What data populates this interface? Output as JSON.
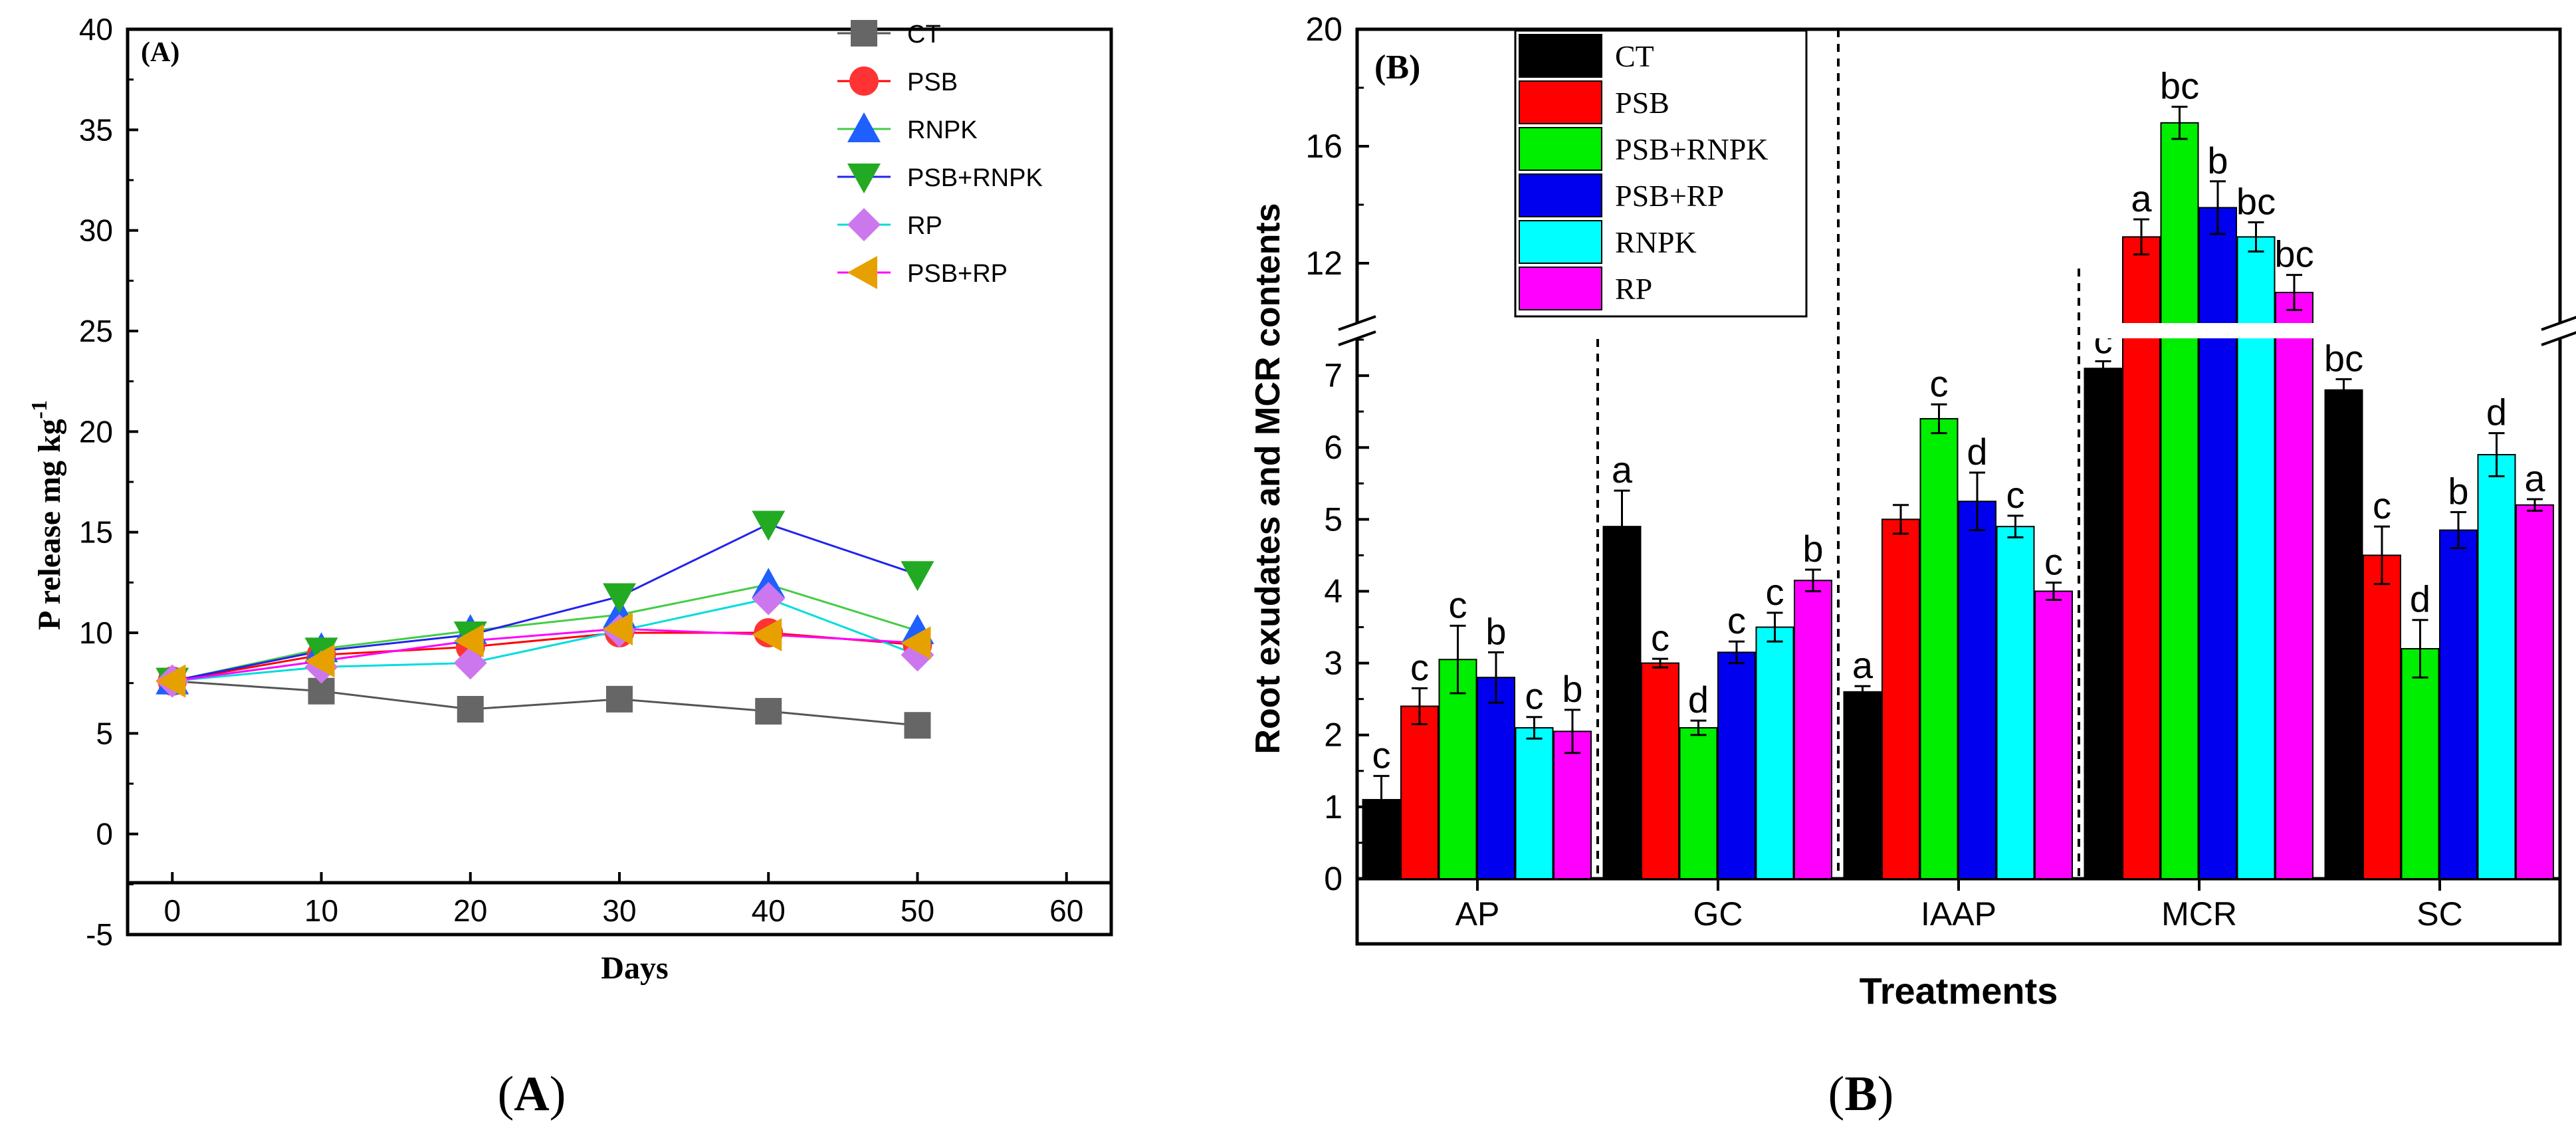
{
  "chart_data": [
    {
      "type": "line",
      "panel_label": "(A)",
      "caption": "(A)",
      "xlabel": "Days",
      "ylabel_main": "P release mg kg",
      "ylabel_sup": "-1",
      "xlim": [
        -3,
        63
      ],
      "ylim": [
        -5,
        40
      ],
      "xticks": [
        "0",
        "10",
        "20",
        "30",
        "40",
        "50",
        "60"
      ],
      "yticks": [
        "-5",
        "0",
        "5",
        "10",
        "15",
        "20",
        "25",
        "30",
        "35",
        "40"
      ],
      "x": [
        0,
        10,
        20,
        30,
        40,
        50
      ],
      "series": [
        {
          "name": "CT",
          "color": "#666666",
          "marker": "square",
          "values": [
            7.6,
            7.1,
            6.2,
            6.7,
            6.1,
            5.4
          ]
        },
        {
          "name": "PSB",
          "color": "#ff3333",
          "marker": "circle",
          "values": [
            7.6,
            8.9,
            9.3,
            10.0,
            10.0,
            9.4
          ]
        },
        {
          "name": "RNPK",
          "color": "#1f5fff",
          "marker": "triangle-up",
          "values": [
            7.6,
            9.2,
            10.1,
            10.9,
            12.4,
            10.1
          ]
        },
        {
          "name": "PSB+RNPK",
          "color": "#22aa22",
          "marker": "triangle-down",
          "values": [
            7.6,
            9.1,
            9.9,
            11.8,
            15.4,
            12.9
          ]
        },
        {
          "name": "RP",
          "color": "#cc77ee",
          "marker": "diamond",
          "values": [
            7.6,
            8.3,
            8.5,
            10.1,
            11.7,
            8.9
          ]
        },
        {
          "name": "PSB+RP",
          "color": "#e6a100",
          "marker": "triangle-left",
          "values": [
            7.6,
            8.6,
            9.6,
            10.2,
            9.9,
            9.5
          ]
        }
      ],
      "line_colors": {
        "CT": "#555555",
        "PSB": "#ff0000",
        "RNPK": "#44cc44",
        "PSB+RNPK": "#2222ee",
        "RP": "#00dddd",
        "PSB+RP": "#ff00ff"
      }
    },
    {
      "type": "bar",
      "panel_label": "(B)",
      "caption": "(B)",
      "xlabel": "Treatments",
      "ylabel": "Root exudates and MCR contents",
      "categories": [
        "AP",
        "GC",
        "IAAP",
        "MCR",
        "SC"
      ],
      "ylim_lower": [
        0,
        7.5
      ],
      "ylim_upper": [
        10,
        20
      ],
      "yticks_lower": [
        "0",
        "1",
        "2",
        "3",
        "4",
        "5",
        "6",
        "7"
      ],
      "yticks_upper": [
        "12",
        "16",
        "20"
      ],
      "series": [
        {
          "name": "CT",
          "color": "#000000",
          "values": [
            1.1,
            4.9,
            2.6,
            7.1,
            6.8
          ],
          "errors": [
            0.33,
            0.5,
            0.08,
            0.1,
            0.15
          ],
          "letters": [
            "c",
            "a",
            "a",
            "c",
            "bc"
          ]
        },
        {
          "name": "PSB",
          "color": "#ff0000",
          "values": [
            2.4,
            3.0,
            5.0,
            12.9,
            4.5
          ],
          "errors": [
            0.25,
            0.06,
            0.2,
            0.6,
            0.4
          ],
          "letters": [
            "c",
            "c",
            "",
            "a",
            "c"
          ]
        },
        {
          "name": "PSB+RNPK",
          "color": "#00ee00",
          "values": [
            3.05,
            2.1,
            6.4,
            16.8,
            3.2
          ],
          "errors": [
            0.47,
            0.1,
            0.2,
            0.55,
            0.4
          ],
          "letters": [
            "c",
            "d",
            "c",
            "bc",
            "d"
          ]
        },
        {
          "name": "PSB+RP",
          "color": "#0000ee",
          "values": [
            2.8,
            3.15,
            5.25,
            13.9,
            4.85
          ],
          "errors": [
            0.35,
            0.15,
            0.4,
            0.9,
            0.25
          ],
          "letters": [
            "b",
            "c",
            "d",
            "b",
            "b"
          ]
        },
        {
          "name": "RNPK",
          "color": "#00ffff",
          "values": [
            2.1,
            3.5,
            4.9,
            12.9,
            5.9
          ],
          "errors": [
            0.15,
            0.2,
            0.15,
            0.5,
            0.3
          ],
          "letters": [
            "c",
            "c",
            "c",
            "bc",
            "d"
          ]
        },
        {
          "name": "RP",
          "color": "#ff00ff",
          "values": [
            2.05,
            4.15,
            4.0,
            11.0,
            5.2
          ],
          "errors": [
            0.3,
            0.15,
            0.12,
            0.6,
            0.08
          ],
          "letters": [
            "b",
            "b",
            "c",
            "bc",
            "a"
          ]
        }
      ]
    }
  ]
}
